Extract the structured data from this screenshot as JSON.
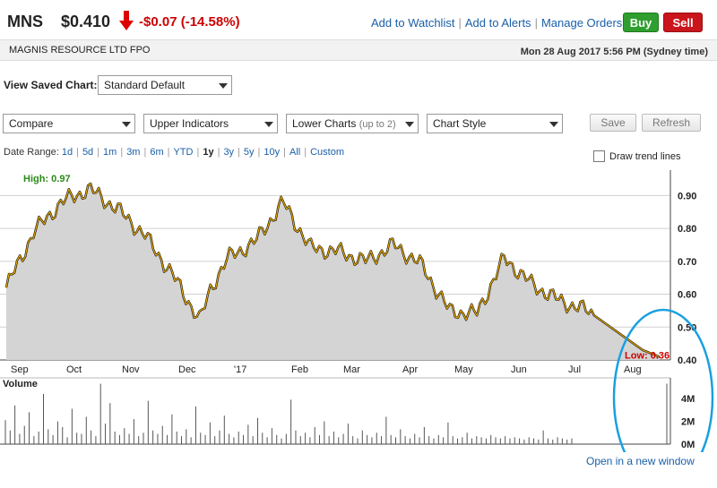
{
  "header": {
    "ticker": "MNS",
    "price": "$0.410",
    "change": "-$0.07 (-14.58%)",
    "links": [
      "Add to Watchlist",
      "Add to Alerts",
      "Manage Orders"
    ],
    "buy_label": "Buy",
    "sell_label": "Sell",
    "down_color": "#c00000",
    "buy_color": "#2f9e2f",
    "sell_color": "#c9151b"
  },
  "subheader": {
    "company": "MAGNIS RESOURCE LTD FPO",
    "datetime": "Mon 28 Aug 2017 5:56 PM (Sydney time)"
  },
  "saved_chart": {
    "label": "View Saved Chart:",
    "value": "Standard Default"
  },
  "controls": {
    "compare": "Compare",
    "upper_indicators": "Upper Indicators",
    "lower_charts": "Lower Charts",
    "lower_charts_hint": "(up to 2)",
    "chart_style": "Chart Style",
    "save_label": "Save",
    "refresh_label": "Refresh"
  },
  "date_range": {
    "label": "Date Range:",
    "options": [
      "1d",
      "5d",
      "1m",
      "3m",
      "6m",
      "YTD",
      "1y",
      "3y",
      "5y",
      "10y",
      "All",
      "Custom"
    ],
    "active": "1y"
  },
  "trend_lines_label": "Draw trend lines",
  "open_new_window": "Open in a new window",
  "chart_data": {
    "type": "area",
    "high_label": "High: 0.97",
    "low_label": "Low: 0.36",
    "y_ticks": [
      "0.90",
      "0.80",
      "0.70",
      "0.60",
      "0.50",
      "0.40"
    ],
    "ylim": [
      0.4,
      0.95
    ],
    "x_ticks": [
      "Sep",
      "Oct",
      "Nov",
      "Dec",
      "'17",
      "Feb",
      "Mar",
      "Apr",
      "May",
      "Jun",
      "Jul",
      "Aug"
    ],
    "x": [
      0,
      0.5,
      1,
      1.5,
      2,
      2.5,
      3,
      3.5,
      3.7,
      4,
      4.5,
      5,
      5.5,
      6,
      6.5,
      7,
      7.5,
      8,
      8.5,
      9,
      9.5,
      10,
      10.5,
      11,
      11.5,
      11.8
    ],
    "values": [
      0.62,
      0.79,
      0.88,
      0.92,
      0.86,
      0.78,
      0.66,
      0.52,
      0.62,
      0.71,
      0.76,
      0.88,
      0.74,
      0.73,
      0.7,
      0.75,
      0.69,
      0.55,
      0.54,
      0.71,
      0.63,
      0.58,
      0.55,
      0.49,
      0.43,
      0.41
    ],
    "line_color": "#e6a800",
    "fill_color": "#d4d4d4",
    "volume": {
      "label": "Volume",
      "y_ticks": [
        "4M",
        "2M",
        "0M"
      ],
      "ylim": [
        0,
        5.5
      ],
      "values": [
        2.1,
        1.2,
        3.4,
        0.9,
        1.6,
        2.8,
        0.7,
        1.1,
        4.4,
        1.3,
        0.8,
        2.0,
        1.5,
        0.6,
        3.1,
        1.0,
        0.9,
        2.4,
        1.2,
        0.7,
        5.3,
        1.8,
        3.6,
        1.1,
        0.8,
        1.4,
        0.9,
        2.2,
        0.7,
        1.0,
        3.8,
        1.2,
        0.9,
        1.6,
        0.8,
        2.6,
        1.1,
        0.7,
        1.3,
        0.6,
        3.3,
        1.0,
        0.8,
        1.9,
        0.7,
        1.2,
        2.5,
        0.9,
        0.6,
        1.1,
        0.8,
        1.7,
        0.7,
        2.3,
        1.0,
        0.6,
        1.4,
        0.8,
        0.5,
        0.9,
        3.9,
        1.2,
        0.7,
        1.0,
        0.6,
        1.5,
        0.8,
        2.0,
        0.7,
        1.1,
        0.6,
        0.9,
        1.8,
        0.7,
        0.5,
        1.2,
        0.8,
        0.6,
        1.0,
        0.7,
        2.4,
        0.8,
        0.6,
        1.3,
        0.7,
        0.5,
        0.9,
        0.6,
        1.5,
        0.7,
        0.5,
        0.8,
        0.6,
        1.9,
        0.7,
        0.5,
        0.6,
        1.0,
        0.5,
        0.7,
        0.6,
        0.5,
        0.8,
        0.6,
        0.5,
        0.7,
        0.5,
        0.6,
        0.5,
        0.4,
        0.6,
        0.5,
        0.4,
        1.2,
        0.5,
        0.4,
        0.6,
        0.5,
        0.4,
        0.5
      ]
    }
  }
}
